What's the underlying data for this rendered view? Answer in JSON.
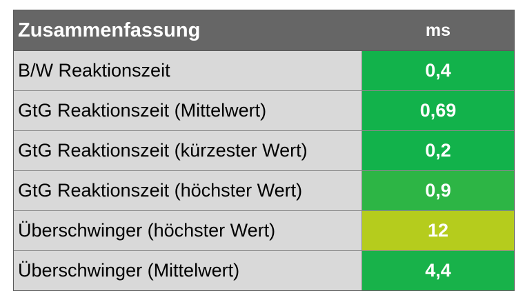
{
  "chart_data": {
    "type": "table",
    "title": "Zusammenfassung",
    "unit": "ms",
    "rows": [
      {
        "label": "B/W Reaktionszeit",
        "value": "0,4",
        "color": "#12b24b"
      },
      {
        "label": "GtG Reaktionszeit (Mittelwert)",
        "value": "0,69",
        "color": "#12b24b"
      },
      {
        "label": "GtG Reaktionszeit (kürzester Wert)",
        "value": "0,2",
        "color": "#12b24b"
      },
      {
        "label": "GtG Reaktionszeit (höchster Wert)",
        "value": "0,9",
        "color": "#2db545"
      },
      {
        "label": "Überschwinger (höchster Wert)",
        "value": "12",
        "color": "#b5cc1d"
      },
      {
        "label": "Überschwinger (Mittelwert)",
        "value": "4,4",
        "color": "#18b24a"
      }
    ]
  },
  "colors": {
    "header_bg": "#666666",
    "label_bg": "#d9d9d9"
  }
}
